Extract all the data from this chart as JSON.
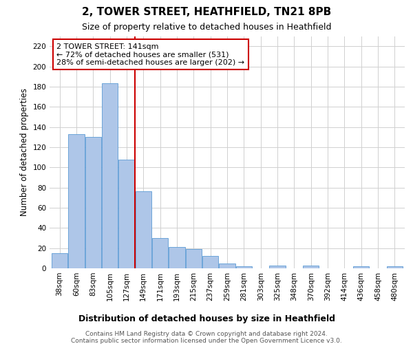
{
  "title1": "2, TOWER STREET, HEATHFIELD, TN21 8PB",
  "title2": "Size of property relative to detached houses in Heathfield",
  "xlabel": "Distribution of detached houses by size in Heathfield",
  "ylabel": "Number of detached properties",
  "categories": [
    "38sqm",
    "60sqm",
    "83sqm",
    "105sqm",
    "127sqm",
    "149sqm",
    "171sqm",
    "193sqm",
    "215sqm",
    "237sqm",
    "259sqm",
    "281sqm",
    "303sqm",
    "325sqm",
    "348sqm",
    "370sqm",
    "392sqm",
    "414sqm",
    "436sqm",
    "458sqm",
    "480sqm"
  ],
  "values": [
    15,
    133,
    130,
    183,
    108,
    76,
    30,
    21,
    19,
    12,
    5,
    2,
    0,
    3,
    0,
    3,
    0,
    0,
    2,
    0,
    2
  ],
  "bar_color": "#aec6e8",
  "bar_edgecolor": "#5b9bd5",
  "vline_x": 4.5,
  "vline_color": "#cc0000",
  "annotation_line1": "2 TOWER STREET: 141sqm",
  "annotation_line2": "← 72% of detached houses are smaller (531)",
  "annotation_line3": "28% of semi-detached houses are larger (202) →",
  "annotation_box_color": "#ffffff",
  "annotation_box_edgecolor": "#cc0000",
  "ylim": [
    0,
    230
  ],
  "yticks": [
    0,
    20,
    40,
    60,
    80,
    100,
    120,
    140,
    160,
    180,
    200,
    220
  ],
  "background_color": "#ffffff",
  "grid_color": "#d0d0d0",
  "footer_line1": "Contains HM Land Registry data © Crown copyright and database right 2024.",
  "footer_line2": "Contains public sector information licensed under the Open Government Licence v3.0.",
  "title1_fontsize": 11,
  "title2_fontsize": 9,
  "xlabel_fontsize": 9,
  "ylabel_fontsize": 8.5,
  "tick_fontsize": 7.5,
  "annotation_fontsize": 8,
  "footer_fontsize": 6.5
}
